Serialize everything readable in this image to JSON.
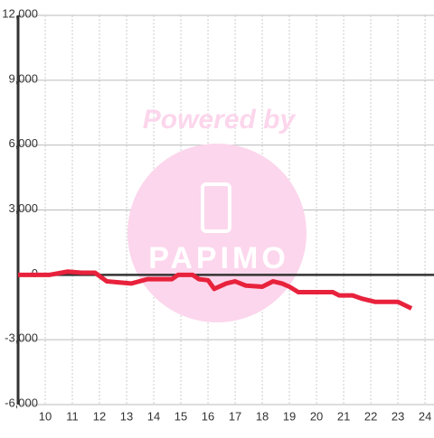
{
  "chart_data": {
    "type": "line",
    "watermark": {
      "title": "Powered by",
      "logo": "PAPIMO"
    },
    "x": [
      9,
      10.17,
      10.83,
      11.33,
      11.83,
      12.27,
      13.17,
      13.77,
      14.67,
      14.9,
      15.43,
      15.67,
      16,
      16.23,
      16.67,
      17,
      17.4,
      18,
      18.4,
      18.73,
      19,
      19.33,
      20.6,
      20.83,
      21.33,
      21.67,
      22.17,
      23,
      23.5
    ],
    "series": [
      {
        "color": "#e8223c",
        "values": [
          0,
          0,
          150,
          100,
          100,
          -300,
          -400,
          -200,
          -200,
          0,
          0,
          -200,
          -250,
          -650,
          -400,
          -300,
          -500,
          -550,
          -300,
          -400,
          -550,
          -800,
          -800,
          -950,
          -950,
          -1100,
          -1250,
          -1250,
          -1550
        ]
      }
    ],
    "xlim": [
      9,
      24.33
    ],
    "xticks": [
      10,
      11,
      12,
      13,
      14,
      15,
      16,
      17,
      18,
      19,
      20,
      21,
      22,
      23,
      24
    ],
    "ylim": [
      -6000,
      12000
    ],
    "yticks": [
      {
        "value": -6000,
        "label": "-6,000"
      },
      {
        "value": -3000,
        "label": "-3,000"
      },
      0,
      {
        "value": 3000,
        "label": "3,000"
      },
      {
        "value": 6000,
        "label": "6,000"
      },
      {
        "value": 9000,
        "label": "9,000"
      },
      {
        "value": 12000,
        "label": "12,000"
      }
    ],
    "grid": true
  }
}
